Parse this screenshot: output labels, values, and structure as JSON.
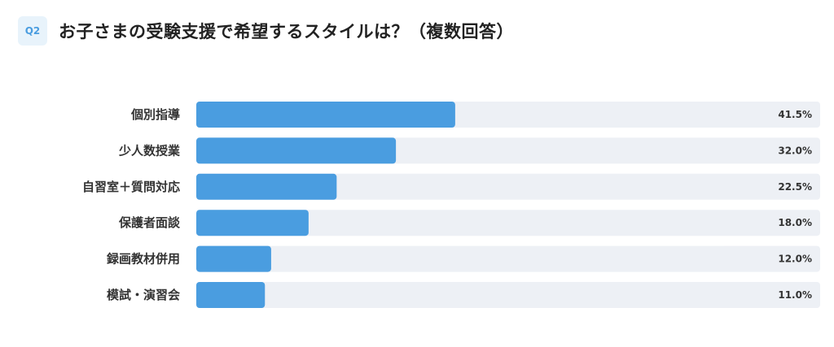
{
  "header": {
    "badge": "Q2",
    "title": "お子さまの受験支援で希望するスタイルは？（複数回答）"
  },
  "colors": {
    "bar": "#4a9de0",
    "track": "#edf0f5",
    "badge_bg": "#e8f3fb",
    "badge_text": "#4a9de0"
  },
  "chart_data": {
    "type": "bar",
    "orientation": "horizontal",
    "title": "お子さまの受験支援で希望するスタイルは？（複数回答）",
    "categories": [
      "個別指導",
      "少人数授業",
      "自習室＋質問対応",
      "保護者面談",
      "録画教材併用",
      "模試・演習会"
    ],
    "values": [
      41.5,
      32.0,
      22.5,
      18.0,
      12.0,
      11.0
    ],
    "value_labels": [
      "41.5%",
      "32.0%",
      "22.5%",
      "18.0%",
      "12.0%",
      "11.0%"
    ],
    "unit": "%",
    "xlim": [
      0,
      100
    ],
    "grid": false,
    "legend": "none"
  }
}
